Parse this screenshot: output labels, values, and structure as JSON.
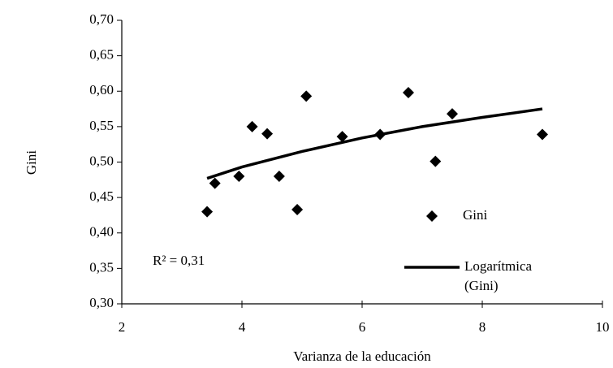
{
  "chart_data": {
    "type": "scatter",
    "xlabel": "Varianza de la educación",
    "ylabel": "Gini",
    "annotation": "R² = 0,31",
    "xlim": [
      2,
      10
    ],
    "xticks": [
      2,
      4,
      6,
      8,
      10
    ],
    "ylim": [
      0.3,
      0.7
    ],
    "yticks": [
      {
        "value": 0.3,
        "label": "0,30"
      },
      {
        "value": 0.35,
        "label": "0,35"
      },
      {
        "value": 0.4,
        "label": "0,40"
      },
      {
        "value": 0.45,
        "label": "0,45"
      },
      {
        "value": 0.5,
        "label": "0,50"
      },
      {
        "value": 0.55,
        "label": "0,55"
      },
      {
        "value": 0.6,
        "label": "0,60"
      },
      {
        "value": 0.65,
        "label": "0,65"
      },
      {
        "value": 0.7,
        "label": "0,70"
      }
    ],
    "grid": false,
    "series": [
      {
        "name": "Gini",
        "type": "scatter",
        "color": "#000000",
        "x": [
          3.42,
          3.55,
          3.95,
          4.17,
          4.42,
          4.62,
          4.92,
          5.07,
          5.67,
          6.3,
          6.77,
          7.22,
          7.5,
          9.0
        ],
        "values": [
          0.43,
          0.47,
          0.48,
          0.55,
          0.54,
          0.48,
          0.433,
          0.593,
          0.536,
          0.539,
          0.598,
          0.501,
          0.568,
          0.539
        ]
      },
      {
        "name": "Logarítmica (Gini)",
        "type": "line",
        "color": "#000000",
        "x": [
          3.42,
          4,
          5,
          6,
          7,
          8,
          9
        ],
        "values": [
          0.477,
          0.493,
          0.515,
          0.534,
          0.55,
          0.563,
          0.575
        ]
      }
    ]
  }
}
